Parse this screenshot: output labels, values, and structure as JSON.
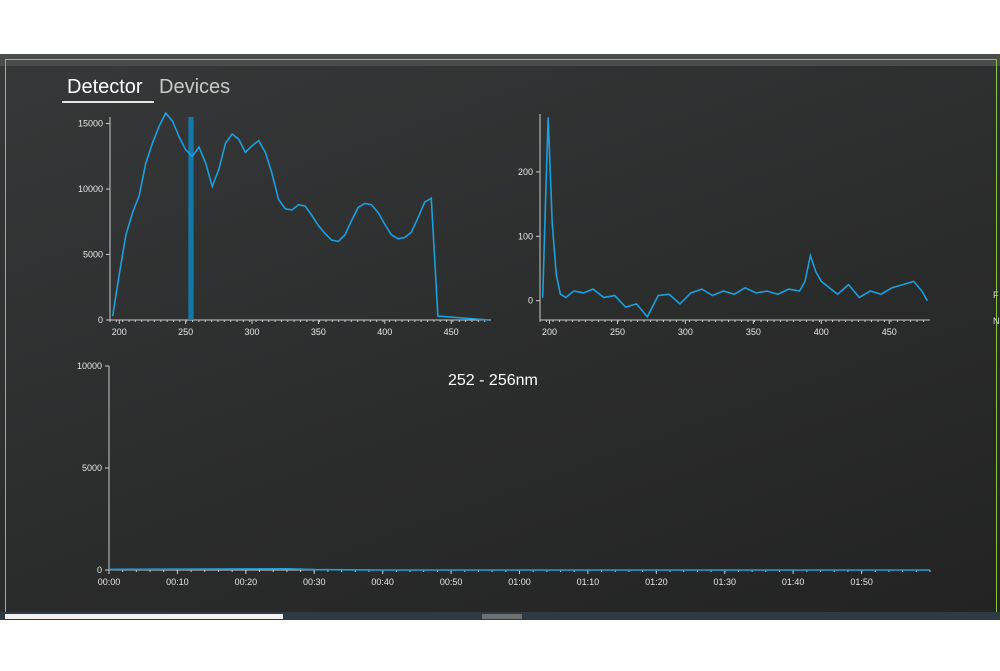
{
  "tabs": [
    {
      "label": "Detector",
      "active": true
    },
    {
      "label": "Devices",
      "active": false
    }
  ],
  "range_label": "252 - 256nm",
  "edge_glyphs": [
    "F",
    "N"
  ],
  "colors": {
    "series": "#1aa0dc",
    "frame": "#8cc63f",
    "background": "#2b2c2c"
  },
  "chart_data": [
    {
      "type": "line",
      "name": "spectrum",
      "x_range": [
        193,
        480
      ],
      "ylim": [
        0,
        15500
      ],
      "xticks": [
        200,
        250,
        300,
        350,
        400,
        450
      ],
      "yticks": [
        0,
        5000,
        10000,
        15000
      ],
      "x": [
        195,
        200,
        205,
        210,
        215,
        220,
        225,
        230,
        235,
        240,
        245,
        250,
        255,
        260,
        265,
        270,
        275,
        280,
        285,
        290,
        295,
        300,
        305,
        310,
        315,
        320,
        325,
        330,
        335,
        340,
        345,
        350,
        355,
        360,
        365,
        370,
        375,
        380,
        385,
        390,
        395,
        400,
        405,
        410,
        415,
        420,
        425,
        430,
        435,
        440,
        445,
        450,
        455,
        460,
        465,
        470,
        475,
        478
      ],
      "y": [
        300,
        3500,
        6500,
        8200,
        9500,
        12000,
        13500,
        14800,
        15800,
        15200,
        14000,
        13000,
        12500,
        13200,
        12000,
        10200,
        11500,
        13500,
        14200,
        13800,
        12800,
        13300,
        13700,
        12800,
        11200,
        9200,
        8500,
        8400,
        8800,
        8700,
        8000,
        7200,
        6600,
        6100,
        6000,
        6500,
        7600,
        8600,
        8900,
        8800,
        8200,
        7300,
        6500,
        6200,
        6300,
        6700,
        7800,
        9000,
        9300,
        300,
        300,
        300,
        300,
        300,
        300,
        300,
        300,
        0
      ],
      "highlight_band": [
        252,
        256
      ]
    },
    {
      "type": "line",
      "name": "difference",
      "x_range": [
        193,
        480
      ],
      "ylim": [
        -30,
        290
      ],
      "xticks": [
        200,
        250,
        300,
        350,
        400,
        450
      ],
      "yticks": [
        0,
        100,
        200
      ],
      "x": [
        195,
        197,
        199,
        202,
        205,
        208,
        212,
        218,
        225,
        232,
        240,
        248,
        256,
        264,
        272,
        280,
        288,
        296,
        304,
        312,
        320,
        328,
        336,
        344,
        352,
        360,
        368,
        376,
        384,
        388,
        392,
        396,
        400,
        406,
        412,
        420,
        428,
        436,
        444,
        452,
        460,
        468,
        474,
        478
      ],
      "y": [
        5,
        150,
        285,
        120,
        40,
        10,
        5,
        15,
        12,
        18,
        5,
        8,
        -10,
        -5,
        -25,
        8,
        10,
        -5,
        12,
        18,
        8,
        15,
        10,
        20,
        12,
        15,
        10,
        18,
        15,
        30,
        70,
        45,
        30,
        20,
        10,
        25,
        5,
        15,
        10,
        20,
        25,
        30,
        15,
        0
      ]
    },
    {
      "type": "line",
      "name": "time-trace",
      "ylim": [
        0,
        10000
      ],
      "yticks": [
        0,
        5000,
        10000
      ],
      "categories": [
        "00:00",
        "00:10",
        "00:20",
        "00:30",
        "00:40",
        "00:50",
        "01:00",
        "01:10",
        "01:20",
        "01:30",
        "01:40",
        "01:50"
      ],
      "x_range_seconds": [
        0,
        120
      ],
      "x": [
        0,
        10,
        20,
        26,
        30,
        35,
        40,
        60,
        80,
        100,
        120
      ],
      "y": [
        30,
        40,
        50,
        60,
        20,
        10,
        0,
        0,
        0,
        0,
        0
      ]
    }
  ]
}
